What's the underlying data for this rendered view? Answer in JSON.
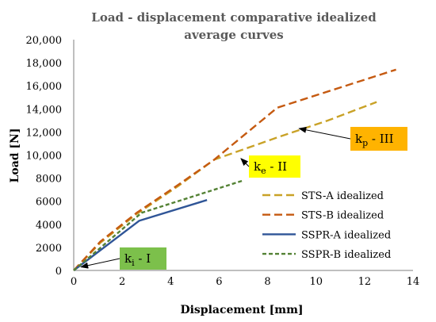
{
  "chart_data": {
    "type": "line",
    "title_lines": [
      "Load - displacement comparative idealized",
      "average curves"
    ],
    "xlabel": "Displacement [mm]",
    "ylabel": "Load [N]",
    "xlim": [
      0,
      14
    ],
    "ylim": [
      0,
      20000
    ],
    "x_ticks": [
      "0",
      "2",
      "4",
      "6",
      "8",
      "10",
      "12",
      "14"
    ],
    "y_ticks": [
      "0",
      "2000",
      "4000",
      "6000",
      "8000",
      "10,000",
      "12,000",
      "14,000",
      "16,000",
      "18,000",
      "20,000"
    ],
    "grid": false,
    "legend_position": "bottom-right",
    "series": [
      {
        "name": "STS-A idealized",
        "color": "#C9A227",
        "dash": "long-dash",
        "points": [
          [
            0,
            0
          ],
          [
            1.1,
            2400
          ],
          [
            2.6,
            4900
          ],
          [
            4.3,
            7300
          ],
          [
            5.8,
            9600
          ],
          [
            8.5,
            11600
          ],
          [
            10.5,
            13000
          ],
          [
            12.5,
            14600
          ]
        ]
      },
      {
        "name": "STS-B idealized",
        "color": "#C55A11",
        "dash": "long-dash",
        "points": [
          [
            0,
            0
          ],
          [
            1.1,
            2500
          ],
          [
            2.6,
            5000
          ],
          [
            4.3,
            7400
          ],
          [
            5.8,
            9600
          ],
          [
            8.4,
            14100
          ],
          [
            13.3,
            17400
          ]
        ]
      },
      {
        "name": "SSPR-A idealized",
        "color": "#2F5597",
        "dash": "solid",
        "points": [
          [
            0,
            0
          ],
          [
            2.7,
            4300
          ],
          [
            5.5,
            6100
          ]
        ]
      },
      {
        "name": "SSPR-B idealized",
        "color": "#548235",
        "dash": "short-dash",
        "points": [
          [
            0,
            0
          ],
          [
            2.8,
            5000
          ],
          [
            7.0,
            7800
          ]
        ]
      }
    ],
    "annotations": [
      {
        "base": "k",
        "sub": "i",
        "rest": " - I",
        "bg": "#7CC04B",
        "arrow_to": [
          0.3,
          300
        ]
      },
      {
        "base": "k",
        "sub": "e",
        "rest": " - II",
        "bg": "#FFFF00",
        "arrow_to": [
          6.9,
          9700
        ]
      },
      {
        "base": "k",
        "sub": "p",
        "rest": " - III",
        "bg": "#FFB300",
        "arrow_to": [
          9.3,
          12300
        ]
      }
    ]
  }
}
